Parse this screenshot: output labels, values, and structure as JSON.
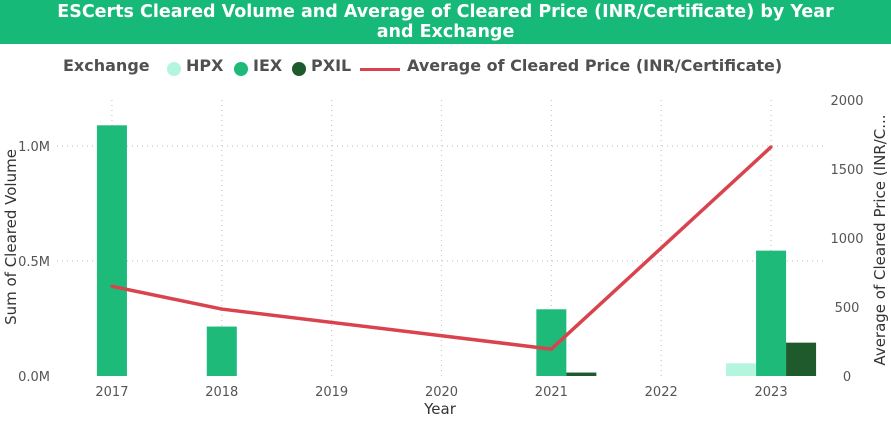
{
  "title_line1": "ESCerts Cleared Volume and Average of Cleared Price (INR/Certificate) by Year",
  "title_line2": "and Exchange",
  "legend": {
    "label": "Exchange",
    "items": [
      {
        "name": "HPX",
        "color": "#b3f5dd"
      },
      {
        "name": "IEX",
        "color": "#1dba79"
      },
      {
        "name": "PXIL",
        "color": "#1e5a2b"
      }
    ],
    "line_item": {
      "name": "Average of Cleared Price (INR/Certificate)",
      "color": "#d9434e"
    }
  },
  "chart_data": {
    "type": "bar",
    "categories": [
      "2017",
      "2018",
      "2019",
      "2020",
      "2021",
      "2022",
      "2023"
    ],
    "series": [
      {
        "name": "HPX",
        "color": "#b3f5dd",
        "values": [
          null,
          null,
          null,
          null,
          null,
          null,
          55000
        ]
      },
      {
        "name": "IEX",
        "color": "#1dba79",
        "values": [
          1090000,
          215000,
          null,
          null,
          290000,
          null,
          545000
        ]
      },
      {
        "name": "PXIL",
        "color": "#1e5a2b",
        "values": [
          null,
          null,
          null,
          null,
          15000,
          null,
          145000
        ]
      }
    ],
    "line_series": {
      "name": "Average of Cleared Price (INR/Certificate)",
      "color": "#d9434e",
      "points": [
        {
          "x": "2017",
          "y": 650
        },
        {
          "x": "2018",
          "y": 485
        },
        {
          "x": "2021",
          "y": 195
        },
        {
          "x": "2023",
          "y": 1660
        }
      ]
    },
    "xlabel": "Year",
    "ylabel": "Sum of Cleared Volume",
    "y2label": "Average of Cleared Price (INR/C...",
    "ylim": [
      0,
      1200000
    ],
    "y2lim": [
      0,
      2000
    ],
    "yticks": [
      {
        "value": 0,
        "label": "0.0M"
      },
      {
        "value": 500000,
        "label": "0.5M"
      },
      {
        "value": 1000000,
        "label": "1.0M"
      }
    ],
    "y2ticks": [
      {
        "value": 0,
        "label": "0"
      },
      {
        "value": 500,
        "label": "500"
      },
      {
        "value": 1000,
        "label": "1000"
      },
      {
        "value": 1500,
        "label": "1500"
      },
      {
        "value": 2000,
        "label": "2000"
      }
    ],
    "grid": true
  }
}
